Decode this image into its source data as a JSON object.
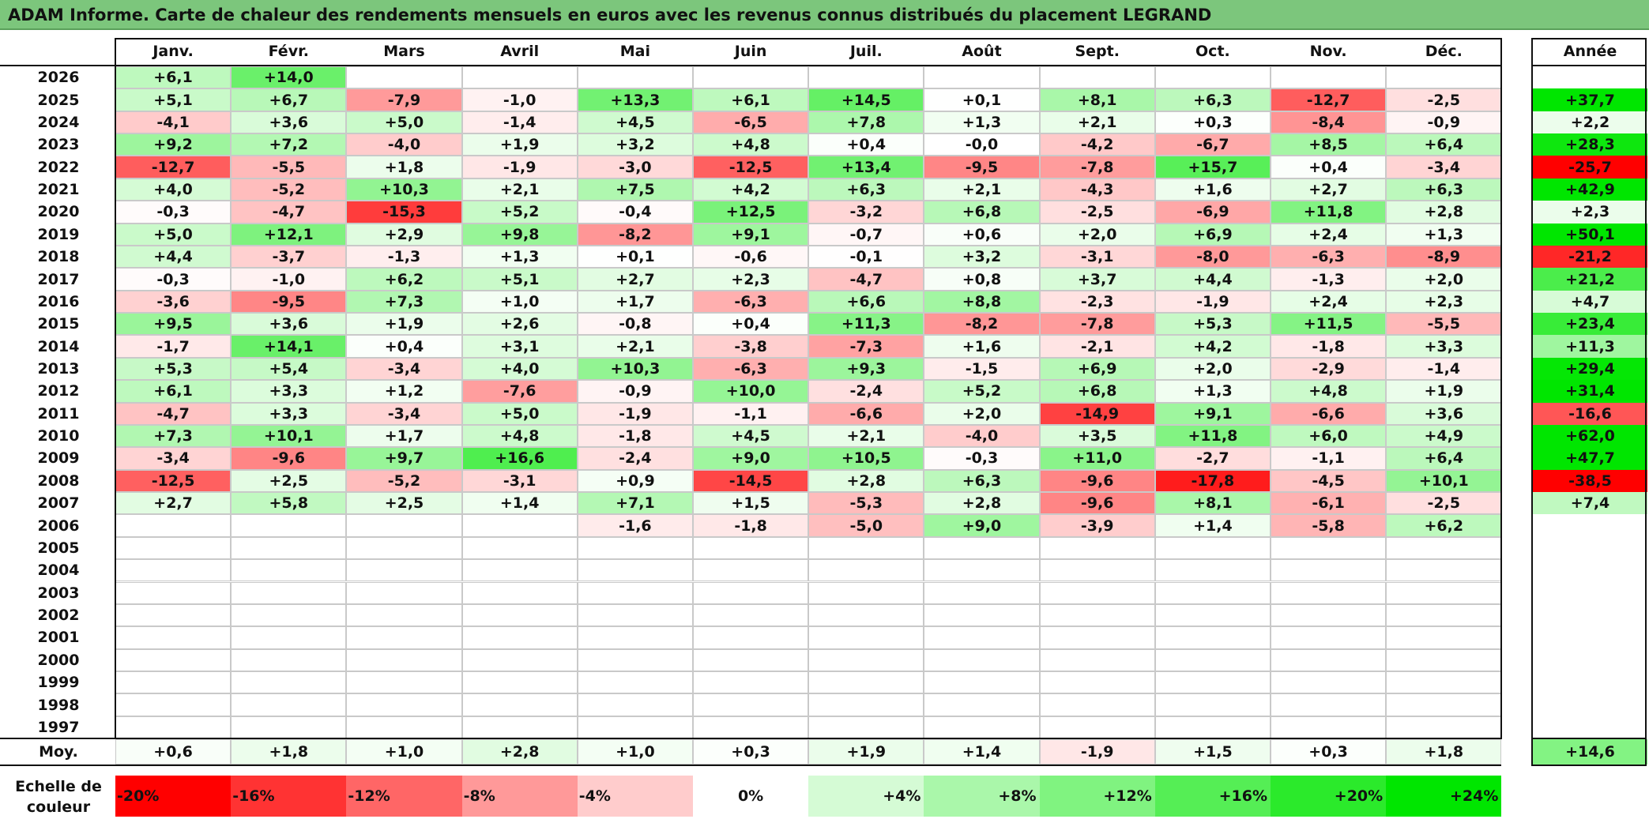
{
  "title": "ADAM Informe. Carte de chaleur des rendements mensuels en euros avec les revenus connus distribués du placement LEGRAND",
  "colors": {
    "banner": "#7cc67c",
    "neg_max": "#ff0000",
    "neutral": "#ffffff",
    "pos_max": "#00e600"
  },
  "chart_data": {
    "type": "heatmap",
    "title": "ADAM Informe. Carte de chaleur des rendements mensuels en euros avec les revenus connus distribués du placement LEGRAND",
    "months": [
      "Janv.",
      "Févr.",
      "Mars",
      "Avril",
      "Mai",
      "Juin",
      "Juil.",
      "Août",
      "Sept.",
      "Oct.",
      "Nov.",
      "Déc."
    ],
    "year_header": "Année",
    "avg_label": "Moy.",
    "rows": [
      {
        "year": "2026",
        "values": [
          6.1,
          14.0,
          null,
          null,
          null,
          null,
          null,
          null,
          null,
          null,
          null,
          null
        ],
        "annual": null
      },
      {
        "year": "2025",
        "values": [
          5.1,
          6.7,
          -7.9,
          -1.0,
          13.3,
          6.1,
          14.5,
          0.1,
          8.1,
          6.3,
          -12.7,
          -2.5
        ],
        "annual": 37.7
      },
      {
        "year": "2024",
        "values": [
          -4.1,
          3.6,
          5.0,
          -1.4,
          4.5,
          -6.5,
          7.8,
          1.3,
          2.1,
          0.3,
          -8.4,
          -0.9
        ],
        "annual": 2.2
      },
      {
        "year": "2023",
        "values": [
          9.2,
          7.2,
          -4.0,
          1.9,
          3.2,
          4.8,
          0.4,
          -0.0,
          -4.2,
          -6.7,
          8.5,
          6.4
        ],
        "annual": 28.3
      },
      {
        "year": "2022",
        "values": [
          -12.7,
          -5.5,
          1.8,
          -1.9,
          -3.0,
          -12.5,
          13.4,
          -9.5,
          -7.8,
          15.7,
          0.4,
          -3.4
        ],
        "annual": -25.7
      },
      {
        "year": "2021",
        "values": [
          4.0,
          -5.2,
          10.3,
          2.1,
          7.5,
          4.2,
          6.3,
          2.1,
          -4.3,
          1.6,
          2.7,
          6.3
        ],
        "annual": 42.9
      },
      {
        "year": "2020",
        "values": [
          -0.3,
          -4.7,
          -15.3,
          5.2,
          -0.4,
          12.5,
          -3.2,
          6.8,
          -2.5,
          -6.9,
          11.8,
          2.8
        ],
        "annual": 2.3
      },
      {
        "year": "2019",
        "values": [
          5.0,
          12.1,
          2.9,
          9.8,
          -8.2,
          9.1,
          -0.7,
          0.6,
          2.0,
          6.9,
          2.4,
          1.3
        ],
        "annual": 50.1
      },
      {
        "year": "2018",
        "values": [
          4.4,
          -3.7,
          -1.3,
          1.3,
          0.1,
          -0.6,
          -0.1,
          3.2,
          -3.1,
          -8.0,
          -6.3,
          -8.9
        ],
        "annual": -21.2
      },
      {
        "year": "2017",
        "values": [
          -0.3,
          -1.0,
          6.2,
          5.1,
          2.7,
          2.3,
          -4.7,
          0.8,
          3.7,
          4.4,
          -1.3,
          2.0
        ],
        "annual": 21.2
      },
      {
        "year": "2016",
        "values": [
          -3.6,
          -9.5,
          7.3,
          1.0,
          1.7,
          -6.3,
          6.6,
          8.8,
          -2.3,
          -1.9,
          2.4,
          2.3
        ],
        "annual": 4.7
      },
      {
        "year": "2015",
        "values": [
          9.5,
          3.6,
          1.9,
          2.6,
          -0.8,
          0.4,
          11.3,
          -8.2,
          -7.8,
          5.3,
          11.5,
          -5.5
        ],
        "annual": 23.4
      },
      {
        "year": "2014",
        "values": [
          -1.7,
          14.1,
          0.4,
          3.1,
          2.1,
          -3.8,
          -7.3,
          1.6,
          -2.1,
          4.2,
          -1.8,
          3.3
        ],
        "annual": 11.3
      },
      {
        "year": "2013",
        "values": [
          5.3,
          5.4,
          -3.4,
          4.0,
          10.3,
          -6.3,
          9.3,
          -1.5,
          6.9,
          2.0,
          -2.9,
          -1.4
        ],
        "annual": 29.4
      },
      {
        "year": "2012",
        "values": [
          6.1,
          3.3,
          1.2,
          -7.6,
          -0.9,
          10.0,
          -2.4,
          5.2,
          6.8,
          1.3,
          4.8,
          1.9
        ],
        "annual": 31.4
      },
      {
        "year": "2011",
        "values": [
          -4.7,
          3.3,
          -3.4,
          5.0,
          -1.9,
          -1.1,
          -6.6,
          2.0,
          -14.9,
          9.1,
          -6.6,
          3.6
        ],
        "annual": -16.6
      },
      {
        "year": "2010",
        "values": [
          7.3,
          10.1,
          1.7,
          4.8,
          -1.8,
          4.5,
          2.1,
          -4.0,
          3.5,
          11.8,
          6.0,
          4.9
        ],
        "annual": 62.0
      },
      {
        "year": "2009",
        "values": [
          -3.4,
          -9.6,
          9.7,
          16.6,
          -2.4,
          9.0,
          10.5,
          -0.3,
          11.0,
          -2.7,
          -1.1,
          6.4
        ],
        "annual": 47.7
      },
      {
        "year": "2008",
        "values": [
          -12.5,
          2.5,
          -5.2,
          -3.1,
          0.9,
          -14.5,
          2.8,
          6.3,
          -9.6,
          -17.8,
          -4.5,
          10.1
        ],
        "annual": -38.5
      },
      {
        "year": "2007",
        "values": [
          2.7,
          5.8,
          2.5,
          1.4,
          7.1,
          1.5,
          -5.3,
          2.8,
          -9.6,
          8.1,
          -6.1,
          -2.5
        ],
        "annual": 7.4
      },
      {
        "year": "2006",
        "values": [
          null,
          null,
          null,
          null,
          -1.6,
          -1.8,
          -5.0,
          9.0,
          -3.9,
          1.4,
          -5.8,
          6.2
        ],
        "annual": null
      },
      {
        "year": "2005",
        "values": [
          null,
          null,
          null,
          null,
          null,
          null,
          null,
          null,
          null,
          null,
          null,
          null
        ],
        "annual": null
      },
      {
        "year": "2004",
        "values": [
          null,
          null,
          null,
          null,
          null,
          null,
          null,
          null,
          null,
          null,
          null,
          null
        ],
        "annual": null
      },
      {
        "year": "2003",
        "values": [
          null,
          null,
          null,
          null,
          null,
          null,
          null,
          null,
          null,
          null,
          null,
          null
        ],
        "annual": null
      },
      {
        "year": "2002",
        "values": [
          null,
          null,
          null,
          null,
          null,
          null,
          null,
          null,
          null,
          null,
          null,
          null
        ],
        "annual": null
      },
      {
        "year": "2001",
        "values": [
          null,
          null,
          null,
          null,
          null,
          null,
          null,
          null,
          null,
          null,
          null,
          null
        ],
        "annual": null
      },
      {
        "year": "2000",
        "values": [
          null,
          null,
          null,
          null,
          null,
          null,
          null,
          null,
          null,
          null,
          null,
          null
        ],
        "annual": null
      },
      {
        "year": "1999",
        "values": [
          null,
          null,
          null,
          null,
          null,
          null,
          null,
          null,
          null,
          null,
          null,
          null
        ],
        "annual": null
      },
      {
        "year": "1998",
        "values": [
          null,
          null,
          null,
          null,
          null,
          null,
          null,
          null,
          null,
          null,
          null,
          null
        ],
        "annual": null
      },
      {
        "year": "1997",
        "values": [
          null,
          null,
          null,
          null,
          null,
          null,
          null,
          null,
          null,
          null,
          null,
          null
        ],
        "annual": null
      }
    ],
    "averages": [
      0.6,
      1.8,
      1.0,
      2.8,
      1.0,
      0.3,
      1.9,
      1.4,
      -1.9,
      1.5,
      0.3,
      1.8
    ],
    "average_annual": 14.6,
    "scale": {
      "label_line1": "Echelle de",
      "label_line2": "couleur",
      "steps": [
        "-20%",
        "-16%",
        "-12%",
        "-8%",
        "-4%",
        "0%",
        "+4%",
        "+8%",
        "+12%",
        "+16%",
        "+20%",
        "+24%"
      ],
      "step_values": [
        -20,
        -16,
        -12,
        -8,
        -4,
        0,
        4,
        8,
        12,
        16,
        20,
        24
      ]
    },
    "color_scale": {
      "min": -20,
      "max": 24,
      "negative_color": "#ff0000",
      "positive_color": "#00e600"
    }
  }
}
